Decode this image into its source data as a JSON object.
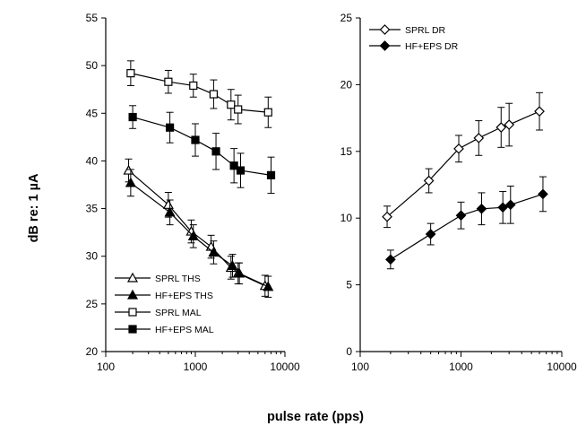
{
  "chart_data": [
    {
      "type": "line",
      "xscale": "log",
      "xlim": [
        100,
        10000
      ],
      "ylim": [
        20,
        55
      ],
      "xticks": [
        "100",
        "1000",
        "10000"
      ],
      "yticks": [
        "20",
        "25",
        "30",
        "35",
        "40",
        "45",
        "50",
        "55"
      ],
      "ylabel": "dB re: 1 µA",
      "xlabel": "pulse rate (pps)",
      "legend_position": "bottom-left",
      "series": [
        {
          "name": "SPRL THS",
          "marker": "open-triangle",
          "x": [
            180,
            500,
            900,
            1500,
            2500,
            3000,
            6000
          ],
          "y": [
            39.0,
            35.4,
            32.6,
            31.0,
            28.8,
            28.2,
            26.9
          ],
          "err": [
            1.2,
            1.3,
            1.2,
            1.2,
            1.2,
            1.1,
            1.1
          ]
        },
        {
          "name": "HF+EPS THS",
          "marker": "filled-triangle",
          "x": [
            190,
            520,
            950,
            1600,
            2600,
            3100,
            6500
          ],
          "y": [
            37.7,
            34.6,
            32.1,
            30.4,
            29.0,
            28.2,
            26.8
          ],
          "err": [
            1.4,
            1.3,
            1.2,
            1.2,
            1.2,
            1.1,
            1.1
          ]
        },
        {
          "name": "SPRL MAL",
          "marker": "open-square",
          "x": [
            190,
            500,
            950,
            1600,
            2500,
            3000,
            6500
          ],
          "y": [
            49.2,
            48.3,
            47.9,
            47.0,
            45.9,
            45.4,
            45.1
          ],
          "err": [
            1.3,
            1.2,
            1.2,
            1.5,
            1.6,
            1.5,
            1.6
          ]
        },
        {
          "name": "HF+EPS MAL",
          "marker": "filled-square",
          "x": [
            200,
            520,
            1000,
            1700,
            2700,
            3200,
            7000
          ],
          "y": [
            44.6,
            43.5,
            42.2,
            41.0,
            39.5,
            39.0,
            38.5
          ],
          "err": [
            1.2,
            1.6,
            1.7,
            1.9,
            1.8,
            1.8,
            1.9
          ]
        }
      ]
    },
    {
      "type": "line",
      "xscale": "log",
      "xlim": [
        100,
        10000
      ],
      "ylim": [
        0,
        25
      ],
      "xticks": [
        "100",
        "1000",
        "10000"
      ],
      "yticks": [
        "0",
        "5",
        "10",
        "15",
        "20",
        "25"
      ],
      "legend_position": "top-left",
      "series": [
        {
          "name": "SPRL DR",
          "marker": "open-diamond",
          "x": [
            185,
            480,
            950,
            1500,
            2500,
            3000,
            6000
          ],
          "y": [
            10.1,
            12.8,
            15.2,
            16.0,
            16.8,
            17.0,
            18.0
          ],
          "err": [
            0.8,
            0.9,
            1.0,
            1.3,
            1.5,
            1.6,
            1.4
          ]
        },
        {
          "name": "HF+EPS DR",
          "marker": "filled-diamond",
          "x": [
            200,
            500,
            1000,
            1600,
            2600,
            3100,
            6500
          ],
          "y": [
            6.9,
            8.8,
            10.2,
            10.7,
            10.8,
            11.0,
            11.8
          ],
          "err": [
            0.7,
            0.8,
            1.0,
            1.2,
            1.2,
            1.4,
            1.3
          ]
        }
      ]
    }
  ]
}
